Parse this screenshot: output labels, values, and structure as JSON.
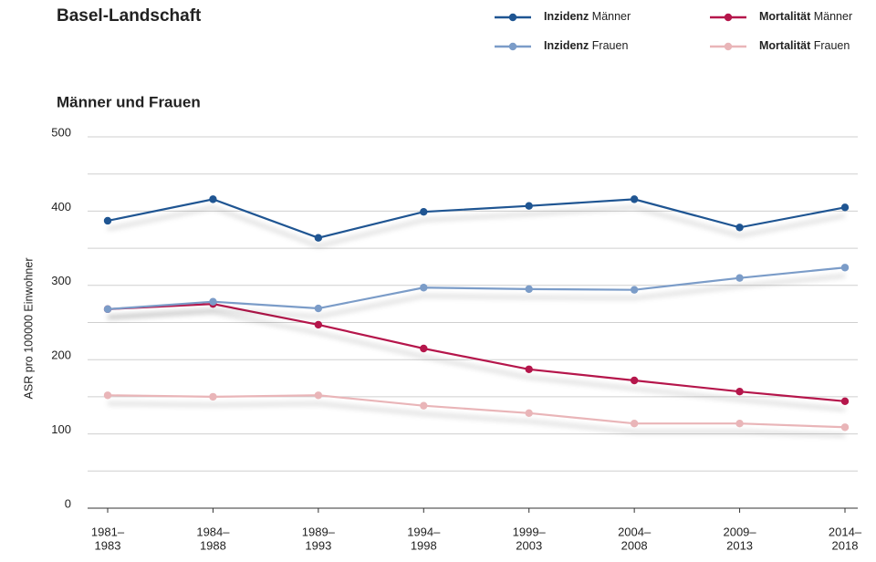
{
  "chart_data": {
    "type": "line",
    "title": "Basel-Landschaft",
    "subtitle": "Männer und Frauen",
    "y_label": "ASR pro 100000 Einwohner",
    "categories": [
      [
        "1981–",
        "1983"
      ],
      [
        "1984–",
        "1988"
      ],
      [
        "1989–",
        "1993"
      ],
      [
        "1994–",
        "1998"
      ],
      [
        "1999–",
        "2003"
      ],
      [
        "2004–",
        "2008"
      ],
      [
        "2009–",
        "2013"
      ],
      [
        "2014–",
        "2018"
      ]
    ],
    "series": [
      {
        "name": "Inzidenz Männer",
        "color": "#1f5592",
        "values": [
          387,
          416,
          364,
          399,
          407,
          416,
          378,
          405
        ]
      },
      {
        "name": "Inzidenz Frauen",
        "color": "#7b9cc8",
        "values": [
          268,
          278,
          269,
          297,
          295,
          294,
          310,
          324
        ]
      },
      {
        "name": "Mortalität Männer",
        "color": "#b5164b",
        "values": [
          268,
          275,
          247,
          215,
          187,
          172,
          157,
          144
        ]
      },
      {
        "name": "Mortalität Frauen",
        "color": "#e9b5b8",
        "values": [
          152,
          150,
          152,
          138,
          128,
          114,
          114,
          109
        ]
      }
    ],
    "ylim": [
      0,
      500
    ],
    "yticks": [
      0,
      100,
      200,
      300,
      400,
      500
    ],
    "minor_yticks": [
      50,
      150,
      250,
      350,
      450
    ],
    "grid": true
  }
}
